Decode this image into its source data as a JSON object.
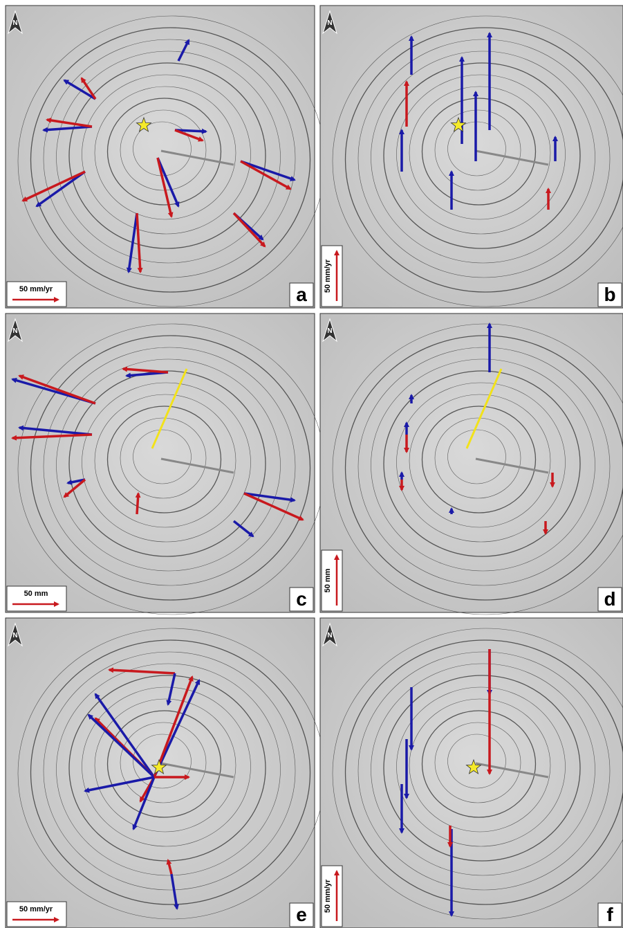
{
  "panels": [
    {
      "label": "a",
      "scale": "50 mm/yr",
      "north": "N"
    },
    {
      "label": "b",
      "scale": "50 mm/yr",
      "north": "N"
    },
    {
      "label": "c",
      "scale": "50 mm",
      "north": "N"
    },
    {
      "label": "d",
      "scale": "50 mm",
      "north": "N"
    },
    {
      "label": "e",
      "scale": "50 mm/yr",
      "north": "N"
    },
    {
      "label": "f",
      "scale": "50 mm/yr",
      "north": "N"
    }
  ]
}
